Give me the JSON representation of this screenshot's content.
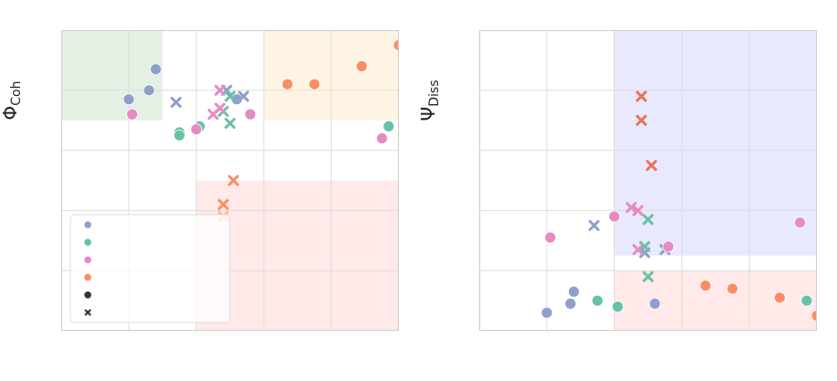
{
  "chart_data": [
    {
      "type": "scatter",
      "ylabel": "Φ",
      "ylabel_sub": "Coh",
      "xlim": [
        0,
        1
      ],
      "ylim": [
        0,
        1
      ],
      "grid": true,
      "legend_placement": "lower-left",
      "legend_colors": [
        "#8da0cb",
        "#66c2a5",
        "#e78ac3",
        "#fc8d62"
      ],
      "legend_markers": [
        "circle",
        "cross"
      ],
      "regions": [
        {
          "x": [
            0,
            0.3
          ],
          "y": [
            0.7,
            1
          ],
          "color": "#e5f0e5"
        },
        {
          "x": [
            0.6,
            1
          ],
          "y": [
            0.7,
            1
          ],
          "color": "#fff4e3"
        },
        {
          "x": [
            0.4,
            1
          ],
          "y": [
            0,
            0.5
          ],
          "color": "#ffe9e9"
        }
      ],
      "series": [
        {
          "color": "#8da0cb",
          "marker": "circle",
          "points": [
            [
              0.28,
              0.87
            ],
            [
              0.26,
              0.8
            ],
            [
              0.2,
              0.77
            ],
            [
              0.52,
              0.77
            ]
          ]
        },
        {
          "color": "#8da0cb",
          "marker": "cross",
          "points": [
            [
              0.34,
              0.76
            ],
            [
              0.49,
              0.8
            ],
            [
              0.54,
              0.78
            ]
          ]
        },
        {
          "color": "#66c2a5",
          "marker": "circle",
          "points": [
            [
              0.35,
              0.66
            ],
            [
              0.35,
              0.65
            ],
            [
              0.41,
              0.68
            ],
            [
              0.97,
              0.68
            ]
          ]
        },
        {
          "color": "#66c2a5",
          "marker": "cross",
          "points": [
            [
              0.5,
              0.78
            ],
            [
              0.48,
              0.73
            ],
            [
              0.5,
              0.69
            ]
          ]
        },
        {
          "color": "#e78ac3",
          "marker": "circle",
          "points": [
            [
              0.21,
              0.72
            ],
            [
              0.4,
              0.67
            ],
            [
              0.56,
              0.72
            ],
            [
              0.95,
              0.64
            ]
          ]
        },
        {
          "color": "#e78ac3",
          "marker": "cross",
          "points": [
            [
              0.47,
              0.8
            ],
            [
              0.47,
              0.74
            ],
            [
              0.45,
              0.72
            ]
          ]
        },
        {
          "color": "#fc8d62",
          "marker": "circle",
          "points": [
            [
              0.67,
              0.82
            ],
            [
              0.75,
              0.82
            ],
            [
              0.89,
              0.88
            ],
            [
              1.0,
              0.95
            ]
          ]
        },
        {
          "color": "#fc8d62",
          "marker": "cross",
          "points": [
            [
              0.51,
              0.5
            ],
            [
              0.48,
              0.42
            ]
          ]
        },
        {
          "color": "#fdb89b",
          "marker": "cross",
          "points": [
            [
              0.48,
              0.38
            ]
          ]
        }
      ]
    },
    {
      "type": "scatter",
      "ylabel": "Ψ",
      "ylabel_sub": "Diss",
      "xlim": [
        0,
        1
      ],
      "ylim": [
        0,
        1
      ],
      "grid": true,
      "regions": [
        {
          "x": [
            0.4,
            1
          ],
          "y": [
            0.25,
            1
          ],
          "color": "#e9e9fd"
        },
        {
          "x": [
            0.4,
            1
          ],
          "y": [
            0,
            0.2
          ],
          "color": "#ffe9e9"
        }
      ],
      "series": [
        {
          "color": "#8da0cb",
          "marker": "circle",
          "points": [
            [
              0.2,
              0.06
            ],
            [
              0.27,
              0.09
            ],
            [
              0.28,
              0.13
            ],
            [
              0.52,
              0.09
            ]
          ]
        },
        {
          "color": "#8da0cb",
          "marker": "cross",
          "points": [
            [
              0.34,
              0.35
            ],
            [
              0.49,
              0.26
            ],
            [
              0.55,
              0.27
            ]
          ]
        },
        {
          "color": "#66c2a5",
          "marker": "circle",
          "points": [
            [
              0.35,
              0.1
            ],
            [
              0.41,
              0.08
            ],
            [
              0.97,
              0.1
            ]
          ]
        },
        {
          "color": "#66c2a5",
          "marker": "cross",
          "points": [
            [
              0.5,
              0.37
            ],
            [
              0.49,
              0.28
            ],
            [
              0.5,
              0.18
            ]
          ]
        },
        {
          "color": "#e78ac3",
          "marker": "circle",
          "points": [
            [
              0.21,
              0.31
            ],
            [
              0.4,
              0.38
            ],
            [
              0.56,
              0.28
            ],
            [
              0.95,
              0.36
            ]
          ]
        },
        {
          "color": "#e78ac3",
          "marker": "cross",
          "points": [
            [
              0.45,
              0.41
            ],
            [
              0.47,
              0.4
            ],
            [
              0.47,
              0.27
            ]
          ]
        },
        {
          "color": "#fc8d62",
          "marker": "circle",
          "points": [
            [
              0.67,
              0.15
            ],
            [
              0.75,
              0.14
            ],
            [
              0.89,
              0.11
            ],
            [
              1.0,
              0.05
            ]
          ]
        },
        {
          "color": "#e8735a",
          "marker": "cross",
          "points": [
            [
              0.48,
              0.78
            ],
            [
              0.48,
              0.7
            ],
            [
              0.51,
              0.55
            ]
          ]
        }
      ]
    }
  ]
}
